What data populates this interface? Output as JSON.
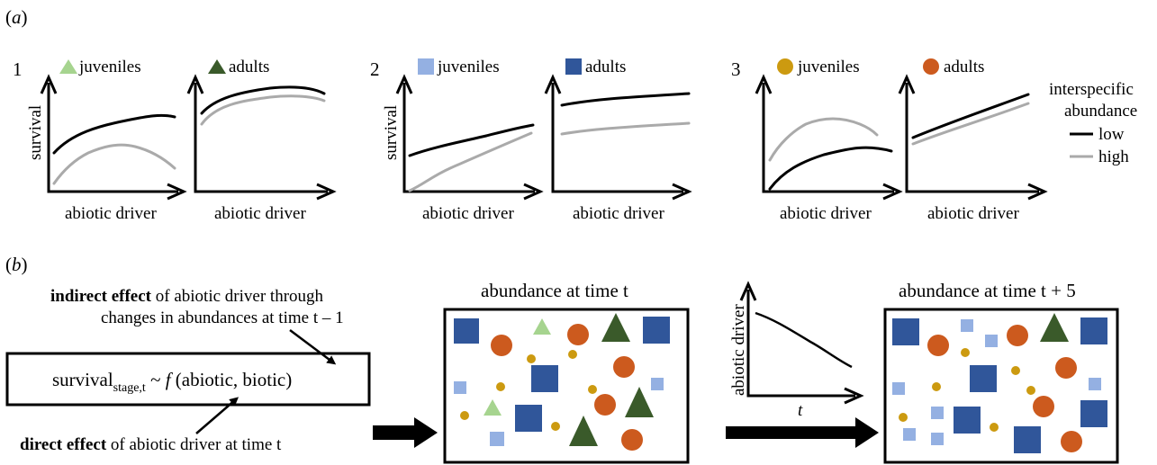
{
  "panel_a": {
    "label": "(a)",
    "legend": {
      "title_line1": "interspecific",
      "title_line2": "abundance",
      "low": "low",
      "high": "high",
      "low_color": "#000000",
      "high_color": "#aaaaaa"
    },
    "axis_y": "survival",
    "axis_x": "abiotic driver",
    "groups": [
      {
        "number": "1",
        "shape": "triangle",
        "juvenile_label": "juveniles",
        "adult_label": "adults",
        "juvenile_color": "#a6d48f",
        "adult_color": "#3a5a2a"
      },
      {
        "number": "2",
        "shape": "square",
        "juvenile_label": "juveniles",
        "adult_label": "adults",
        "juvenile_color": "#94b0e2",
        "adult_color": "#30569a"
      },
      {
        "number": "3",
        "shape": "circle",
        "juvenile_label": "juveniles",
        "adult_label": "adults",
        "juvenile_color": "#cc9a10",
        "adult_color": "#cc5a1e"
      }
    ]
  },
  "panel_b": {
    "label": "(b)",
    "indirect_bold": "indirect effect",
    "indirect_rest": " of abiotic driver through",
    "indirect_line2": "changes in abundances at time t – 1",
    "formula_main": "survival",
    "formula_sub": "stage,t",
    "formula_rest": " ~ ",
    "formula_f": "f",
    "formula_args": " (abiotic, biotic)",
    "direct_bold": "direct effect",
    "direct_rest": " of abiotic driver at time t",
    "box1_title": "abundance at time t",
    "box2_title": "abundance at time t + 5",
    "driver_axis_y": "abiotic driver",
    "driver_axis_x": "t"
  }
}
